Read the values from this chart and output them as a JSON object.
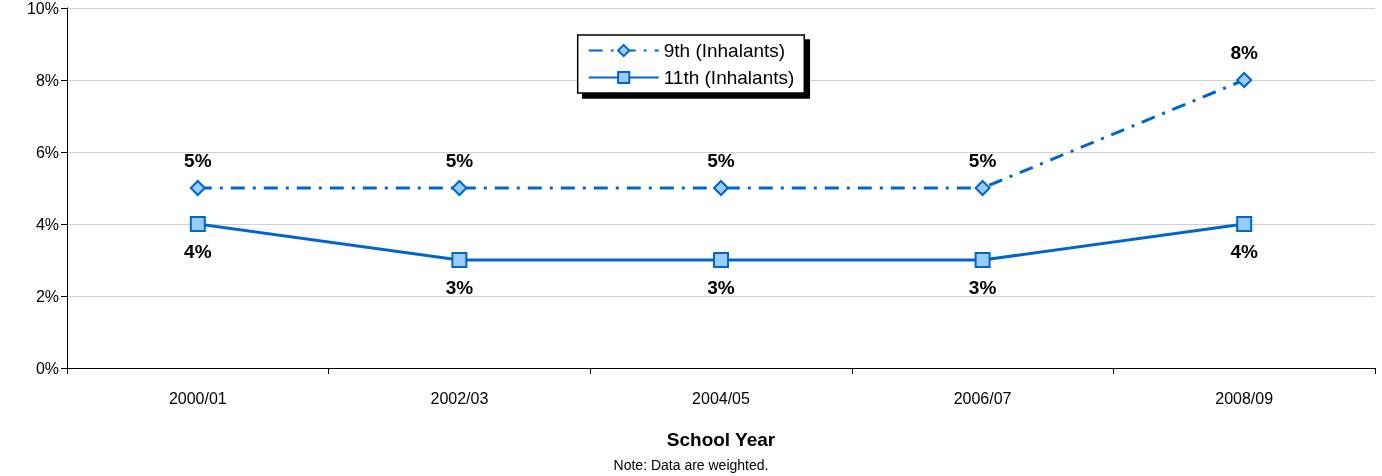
{
  "chart_data": {
    "type": "line",
    "xlabel": "School Year",
    "annotations": [
      "Note: Data are weighted."
    ],
    "categories": [
      "2000/01",
      "2002/03",
      "2004/05",
      "2006/07",
      "2008/09"
    ],
    "series": [
      {
        "name": "9th (Inhalants)",
        "color": "#0066cc",
        "values": [
          5,
          5,
          5,
          5,
          8
        ],
        "value_labels": [
          "5%",
          "5%",
          "5%",
          "5%",
          "8%"
        ],
        "marker": "diamond",
        "line_style": "dashed"
      },
      {
        "name": "11th (Inhalants)",
        "color": "#0066cc",
        "values": [
          4,
          3,
          3,
          3,
          4
        ],
        "value_labels": [
          "4%",
          "3%",
          "3%",
          "3%",
          "4%"
        ],
        "marker": "square",
        "line_style": "solid"
      }
    ],
    "ylim": [
      0,
      10
    ],
    "yticks": [
      {
        "value": 0,
        "label": "0%"
      },
      {
        "value": 2,
        "label": "2%"
      },
      {
        "value": 4,
        "label": "4%"
      },
      {
        "value": 6,
        "label": "6%"
      },
      {
        "value": 8,
        "label": "8%"
      },
      {
        "value": 10,
        "label": "10%"
      }
    ],
    "grid": "y",
    "legend": "top"
  }
}
